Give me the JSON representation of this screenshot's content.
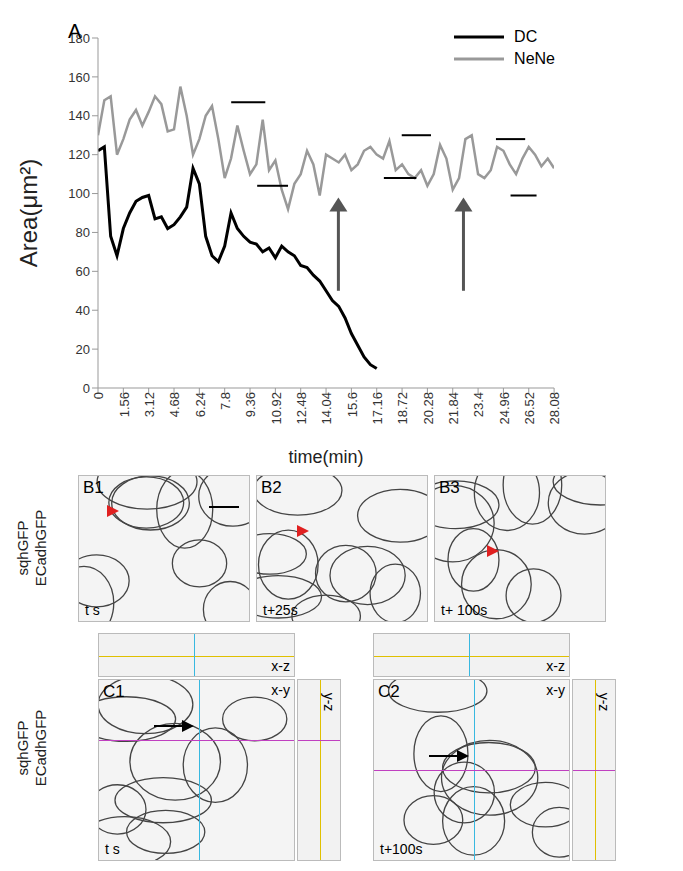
{
  "chart_data": {
    "type": "line",
    "title": "A",
    "x_label": "time(min)",
    "y_label": "Area(μm²)",
    "legend": "top-right",
    "grid": false,
    "xlim": [
      0,
      28.08
    ],
    "xticks": [
      0,
      1.56,
      3.12,
      4.68,
      6.24,
      7.8,
      9.36,
      10.92,
      12.48,
      14.04,
      15.6,
      17.16,
      18.72,
      20.28,
      21.84,
      23.4,
      24.96,
      26.52,
      28.08
    ],
    "ylim": [
      0,
      180
    ],
    "yticks": [
      0,
      20,
      40,
      60,
      80,
      100,
      120,
      140,
      160,
      180
    ],
    "x": [
      0,
      0.39,
      0.78,
      1.17,
      1.56,
      1.95,
      2.34,
      2.73,
      3.12,
      3.51,
      3.9,
      4.29,
      4.68,
      5.07,
      5.46,
      5.85,
      6.24,
      6.63,
      7.02,
      7.41,
      7.8,
      8.19,
      8.58,
      8.97,
      9.36,
      9.75,
      10.14,
      10.53,
      10.92,
      11.31,
      11.7,
      12.09,
      12.48,
      12.87,
      13.26,
      13.65,
      14.04,
      14.43,
      14.82,
      15.21,
      15.6,
      15.99,
      16.38,
      16.77,
      17.16,
      17.55,
      17.94,
      18.33,
      18.72,
      19.11,
      19.5,
      19.89,
      20.28,
      20.67,
      21.06,
      21.45,
      21.84,
      22.23,
      22.62,
      23.01,
      23.4,
      23.79,
      24.18,
      24.57,
      24.96,
      25.35,
      25.74,
      26.13,
      26.52,
      26.91,
      27.3,
      27.69,
      28.08
    ],
    "series": [
      {
        "name": "DC",
        "color": "#000000",
        "values": [
          122,
          124,
          78,
          68,
          82,
          90,
          96,
          98,
          99,
          87,
          88,
          82,
          84,
          88,
          93,
          113,
          105,
          78,
          68,
          65,
          73,
          90,
          82,
          78,
          75,
          74,
          70,
          72,
          67,
          73,
          70,
          68,
          63,
          62,
          58,
          55,
          50,
          45,
          42,
          36,
          28,
          22,
          16,
          12,
          10,
          null,
          null,
          null,
          null,
          null,
          null,
          null,
          null,
          null,
          null,
          null,
          null,
          null,
          null,
          null,
          null,
          null,
          null,
          null,
          null,
          null,
          null,
          null,
          null,
          null,
          null,
          null,
          null
        ]
      },
      {
        "name": "NeNe",
        "color": "#999999",
        "values": [
          130,
          148,
          150,
          120,
          128,
          138,
          143,
          135,
          142,
          150,
          146,
          132,
          133,
          155,
          140,
          120,
          128,
          140,
          145,
          128,
          108,
          118,
          135,
          122,
          110,
          115,
          138,
          112,
          117,
          102,
          92,
          105,
          110,
          122,
          115,
          99,
          120,
          118,
          116,
          120,
          112,
          115,
          122,
          124,
          120,
          118,
          127,
          112,
          115,
          110,
          108,
          112,
          104,
          110,
          125,
          118,
          102,
          108,
          128,
          130,
          110,
          108,
          112,
          124,
          122,
          115,
          110,
          118,
          124,
          120,
          114,
          118,
          113
        ]
      }
    ],
    "annotations": {
      "segments": [
        {
          "x": [
            8.2,
            10.3
          ],
          "y": 147
        },
        {
          "x": [
            9.8,
            11.7
          ],
          "y": 104
        },
        {
          "x": [
            18.7,
            20.5
          ],
          "y": 130
        },
        {
          "x": [
            17.6,
            19.6
          ],
          "y": 108
        },
        {
          "x": [
            24.5,
            26.3
          ],
          "y": 128
        },
        {
          "x": [
            25.4,
            27.0
          ],
          "y": 99
        }
      ],
      "arrows": [
        {
          "x": 14.8,
          "y": [
            50,
            98
          ]
        },
        {
          "x": 22.5,
          "y": [
            50,
            98
          ]
        }
      ]
    }
  },
  "panels": {
    "B": {
      "side_label": [
        "sqhGFP",
        "ECadhGFP"
      ],
      "images": [
        {
          "label": "B1",
          "time": "t s"
        },
        {
          "label": "B2",
          "time": "t+25s"
        },
        {
          "label": "B3",
          "time": "t+ 100s"
        }
      ]
    },
    "C": {
      "side_label": [
        "sqhGFP",
        "ECadhGFP"
      ],
      "images": [
        {
          "label": "C1",
          "time": "t s",
          "views": [
            "x-z",
            "x-y",
            "y-z"
          ]
        },
        {
          "label": "C2",
          "time": "t+100s",
          "views": [
            "x-z",
            "x-y",
            "y-z"
          ]
        }
      ]
    }
  }
}
